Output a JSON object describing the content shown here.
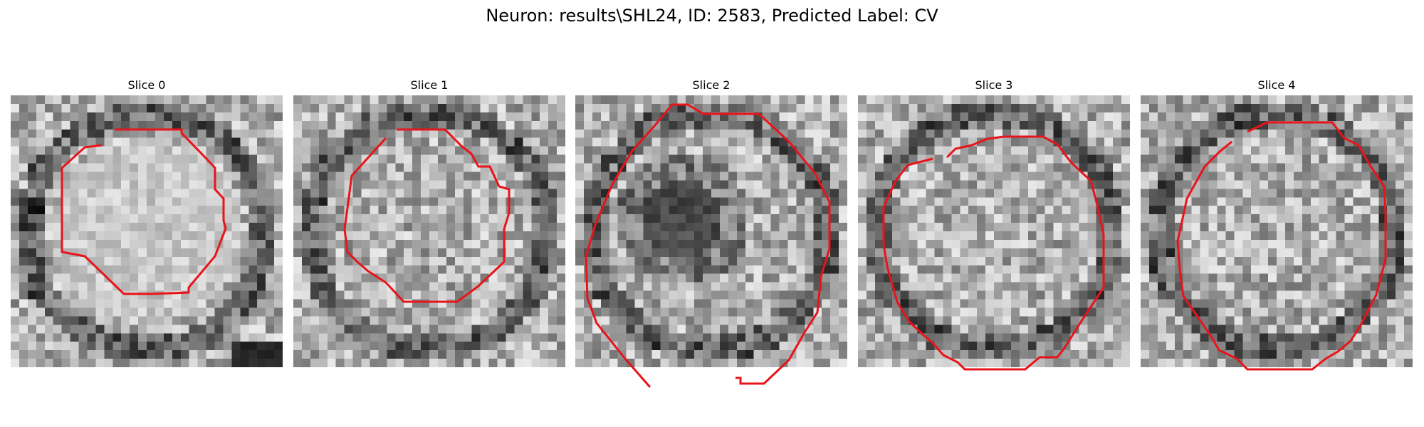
{
  "title": "Neuron: results\\SHL24, ID: 2583, Predicted Label: CV",
  "contour_color": "#e8141a",
  "slices": [
    {
      "label": "Slice 0",
      "dark_ring": "blob",
      "seed": 11
    },
    {
      "label": "Slice 1",
      "dark_ring": "ring",
      "seed": 23
    },
    {
      "label": "Slice 2",
      "dark_ring": "inner",
      "seed": 37
    },
    {
      "label": "Slice 3",
      "dark_ring": "ring",
      "seed": 51
    },
    {
      "label": "Slice 4",
      "dark_ring": "ring",
      "seed": 67
    }
  ]
}
